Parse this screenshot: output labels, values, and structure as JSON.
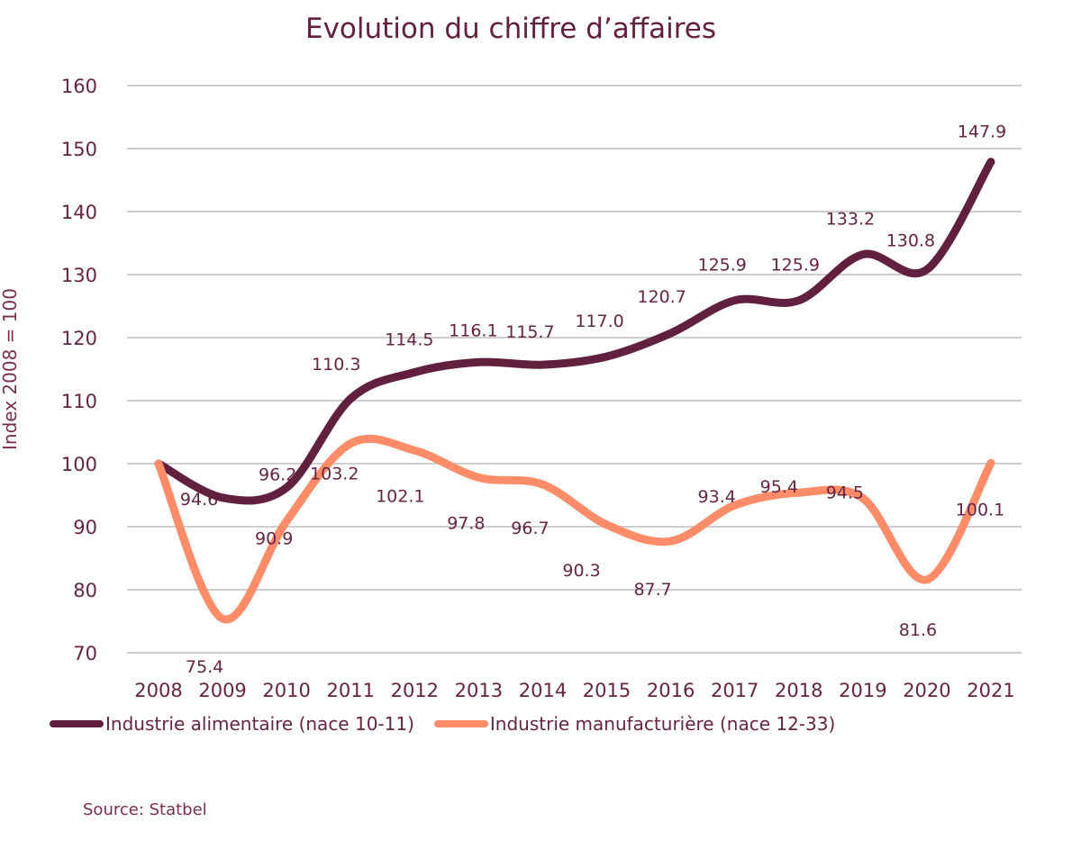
{
  "chart_data": {
    "type": "line",
    "title": "Evolution du chiffre d’affaires",
    "xlabel": "",
    "ylabel": "Index 2008 = 100",
    "ylim": [
      70,
      160
    ],
    "yticks": [
      70,
      80,
      90,
      100,
      110,
      120,
      130,
      140,
      150,
      160
    ],
    "grid": true,
    "legend_position": "bottom",
    "categories": [
      "2008",
      "2009",
      "2010",
      "2011",
      "2012",
      "2013",
      "2014",
      "2015",
      "2016",
      "2017",
      "2018",
      "2019",
      "2020",
      "2021"
    ],
    "series": [
      {
        "name": "Industrie alimentaire (nace 10-11)",
        "color": "#62203f",
        "values": [
          100,
          94.6,
          96.2,
          110.3,
          114.5,
          116.1,
          115.7,
          117.0,
          120.7,
          125.9,
          125.9,
          133.2,
          130.8,
          147.9
        ],
        "labels": [
          "",
          "94.6",
          "96.2",
          "110.3",
          "114.5",
          "116.1",
          "115.7",
          "117.0",
          "120.7",
          "125.9",
          "125.9",
          "133.2",
          "130.8",
          "147.9"
        ]
      },
      {
        "name": "Industrie manufacturière (nace 12-33)",
        "color": "#ff8c69",
        "values": [
          100,
          75.4,
          90.9,
          103.2,
          102.1,
          97.8,
          96.7,
          90.3,
          87.7,
          93.4,
          95.4,
          94.5,
          81.6,
          100.1
        ],
        "labels": [
          "",
          "75.4",
          "90.9",
          "103.2",
          "102.1",
          "97.8",
          "96.7",
          "90.3",
          "87.7",
          "93.4",
          "95.4",
          "94.5",
          "81.6",
          "100.1"
        ]
      }
    ],
    "source": "Source: Statbel"
  }
}
